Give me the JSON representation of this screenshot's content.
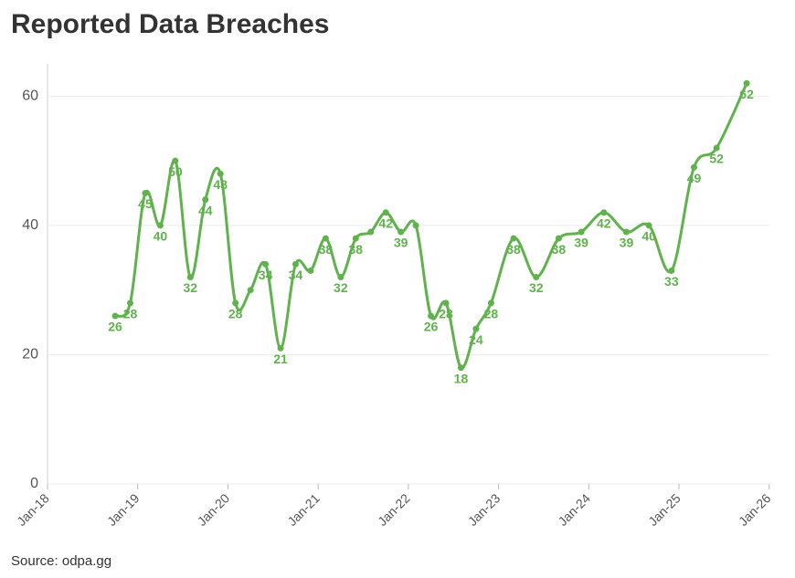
{
  "chart_data": {
    "type": "line",
    "title": "Reported Data Breaches",
    "source": "Source: odpa.gg",
    "x": [
      "Oct-18",
      "Dec-18",
      "Feb-19",
      "Apr-19",
      "Jun-19",
      "Aug-19",
      "Oct-19",
      "Dec-19",
      "Feb-20",
      "Apr-20",
      "Jun-20",
      "Aug-20",
      "Oct-20",
      "Dec-20",
      "Feb-21",
      "Apr-21",
      "Jun-21",
      "Aug-21",
      "Oct-21",
      "Dec-21",
      "Feb-22",
      "Apr-22",
      "Jun-22",
      "Aug-22",
      "Oct-22",
      "Dec-22",
      "Mar-23",
      "Jun-23",
      "Sep-23",
      "Dec-23",
      "Mar-24",
      "Jun-24",
      "Sep-24",
      "Dec-24",
      "Mar-25",
      "Jun-25",
      "Oct-25"
    ],
    "series": [
      {
        "name": "Reported Data Breaches",
        "color": "#5fb24c",
        "values": [
          26,
          28,
          45,
          40,
          50,
          32,
          44,
          48,
          28,
          30,
          34,
          21,
          34,
          33,
          38,
          32,
          38,
          39,
          42,
          39,
          40,
          26,
          28,
          18,
          24,
          28,
          38,
          32,
          38,
          39,
          42,
          39,
          40,
          33,
          49,
          52,
          62
        ],
        "value_labels": [
          "26",
          "28",
          "45",
          "40",
          "50",
          "32",
          "44",
          "48",
          "28",
          null,
          "34",
          "21",
          "34",
          null,
          "38",
          "32",
          "38",
          null,
          "42",
          "39",
          null,
          "26",
          "28",
          "18",
          "24",
          "28",
          "38",
          "32",
          "38",
          "39",
          "42",
          "39",
          "40",
          "33",
          "49",
          "52",
          "62"
        ]
      }
    ],
    "xlim": [
      "Jan-18",
      "Feb-26"
    ],
    "xticks": [
      "Jan-18",
      "Jan-19",
      "Jan-20",
      "Jan-21",
      "Jan-22",
      "Jan-23",
      "Jan-24",
      "Jan-25",
      "Jan-26"
    ],
    "ylim": [
      0,
      65
    ],
    "yticks": [
      0,
      20,
      40,
      60
    ],
    "grid": true
  }
}
